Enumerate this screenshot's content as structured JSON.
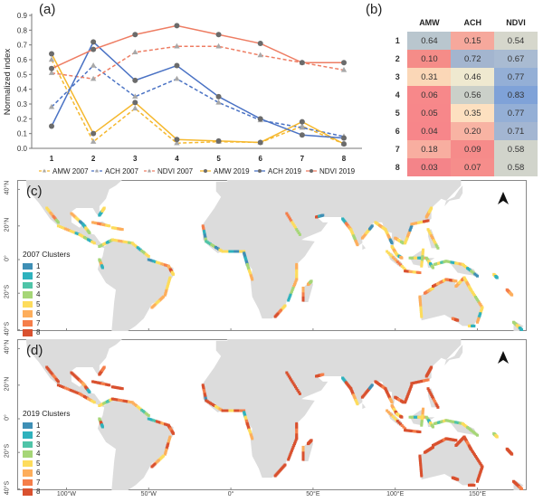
{
  "panel_labels": {
    "a": "(a)",
    "b": "(b)",
    "c": "(c)",
    "d": "(d)"
  },
  "chart_data": [
    {
      "type": "line",
      "panel": "(a)",
      "title": "",
      "xlabel": "",
      "ylabel": "Normalized index",
      "categories": [
        "1",
        "2",
        "3",
        "4",
        "5",
        "6",
        "7",
        "8"
      ],
      "ylim": [
        0.0,
        0.9
      ],
      "yticks": [
        "0.0",
        "0.1",
        "0.2",
        "0.3",
        "0.4",
        "0.5",
        "0.6",
        "0.7",
        "0.8",
        "0.9"
      ],
      "grid": false,
      "legend_position": "bottom",
      "series": [
        {
          "name": "AMW 2007",
          "color": "#f5b82e",
          "style": "dashed",
          "marker": "triangle",
          "values": [
            0.6,
            0.045,
            0.27,
            0.035,
            0.045,
            0.04,
            0.15,
            0.03
          ]
        },
        {
          "name": "ACH 2007",
          "color": "#4a72c4",
          "style": "dashed",
          "marker": "triangle",
          "values": [
            0.28,
            0.56,
            0.35,
            0.47,
            0.31,
            0.19,
            0.14,
            0.08
          ]
        },
        {
          "name": "NDVI 2007",
          "color": "#ee7d63",
          "style": "dashed",
          "marker": "triangle",
          "values": [
            0.51,
            0.47,
            0.65,
            0.69,
            0.69,
            0.63,
            0.58,
            0.53
          ]
        },
        {
          "name": "AMW 2019",
          "color": "#f5b82e",
          "style": "solid",
          "marker": "circle",
          "values": [
            0.64,
            0.1,
            0.31,
            0.06,
            0.05,
            0.04,
            0.18,
            0.03
          ]
        },
        {
          "name": "ACH 2019",
          "color": "#4a72c4",
          "style": "solid",
          "marker": "circle",
          "values": [
            0.15,
            0.72,
            0.46,
            0.56,
            0.35,
            0.2,
            0.09,
            0.07
          ]
        },
        {
          "name": "NDVI 2019",
          "color": "#ee7d63",
          "style": "solid",
          "marker": "circle",
          "values": [
            0.54,
            0.67,
            0.77,
            0.83,
            0.77,
            0.71,
            0.58,
            0.58
          ]
        }
      ]
    },
    {
      "type": "heatmap",
      "panel": "(b)",
      "columns": [
        "AMW",
        "ACH",
        "NDVI"
      ],
      "rows": [
        "1",
        "2",
        "3",
        "4",
        "5",
        "6",
        "7",
        "8"
      ],
      "values": [
        [
          "0.64",
          "0.15",
          "0.54"
        ],
        [
          "0.10",
          "0.72",
          "0.67"
        ],
        [
          "0.31",
          "0.46",
          "0.77"
        ],
        [
          "0.06",
          "0.56",
          "0.83"
        ],
        [
          "0.05",
          "0.35",
          "0.77"
        ],
        [
          "0.04",
          "0.20",
          "0.71"
        ],
        [
          "0.18",
          "0.09",
          "0.58"
        ],
        [
          "0.03",
          "0.07",
          "0.58"
        ]
      ],
      "colors": [
        [
          "#b9c6ce",
          "#f6a89c",
          "#d6d7cc"
        ],
        [
          "#f58c88",
          "#a3b5cf",
          "#a9bbd2"
        ],
        [
          "#fbd7b7",
          "#efe9d0",
          "#94afd6"
        ],
        [
          "#f7888a",
          "#cbd0c9",
          "#7fa2d8"
        ],
        [
          "#f7878a",
          "#fde0c0",
          "#94afd6"
        ],
        [
          "#f7868a",
          "#f8b3a3",
          "#a3b6d2"
        ],
        [
          "#f8aea0",
          "#f68b8a",
          "#d1d4cb"
        ],
        [
          "#f48489",
          "#f68d8b",
          "#d1d4cb"
        ]
      ]
    }
  ],
  "maps": {
    "c": {
      "legend_title": "2007 Clusters"
    },
    "d": {
      "legend_title": "2019 Clusters"
    },
    "cluster_labels": [
      "1",
      "2",
      "3",
      "4",
      "5",
      "6",
      "7",
      "8"
    ],
    "cluster_colors": [
      "#3f8fb5",
      "#2fb2bd",
      "#4fc4a8",
      "#a6d677",
      "#fddc5c",
      "#fdae5c",
      "#f57e4a",
      "#d9512f"
    ],
    "lat_ticks": [
      "40°N",
      "20°N",
      "0°",
      "20°S",
      "40°S"
    ],
    "lon_ticks": [
      "100°W",
      "50°W",
      "0°",
      "50°E",
      "100°E",
      "150°E"
    ],
    "north_arrow": "north-arrow-icon"
  }
}
